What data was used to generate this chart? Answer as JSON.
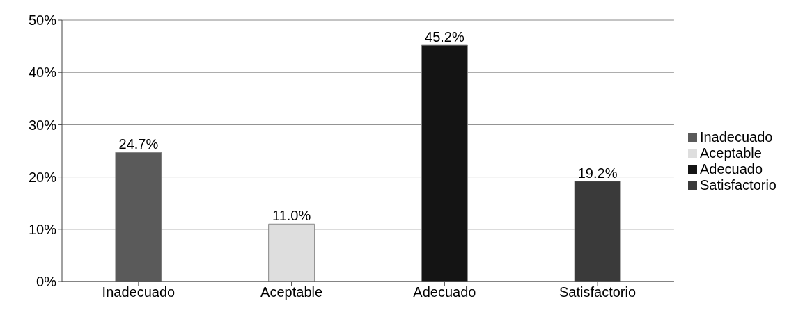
{
  "chart_data": {
    "type": "bar",
    "categories": [
      "Inadecuado",
      "Aceptable",
      "Adecuado",
      "Satisfactorio"
    ],
    "series": [
      {
        "name": "Inadecuado",
        "color": "#5a5a5a",
        "values": [
          24.7,
          null,
          null,
          null
        ],
        "value_labels": [
          "24.7%",
          null,
          null,
          null
        ]
      },
      {
        "name": "Aceptable",
        "color": "#dedede",
        "values": [
          null,
          11.0,
          null,
          null
        ],
        "value_labels": [
          null,
          "11.0%",
          null,
          null
        ]
      },
      {
        "name": "Adecuado",
        "color": "#141414",
        "values": [
          null,
          null,
          45.2,
          null
        ],
        "value_labels": [
          null,
          null,
          "45.2%",
          null
        ]
      },
      {
        "name": "Satisfactorio",
        "color": "#3a3a3a",
        "values": [
          null,
          null,
          null,
          19.2
        ],
        "value_labels": [
          null,
          null,
          null,
          "19.2%"
        ]
      }
    ],
    "stacked": true,
    "ylim": [
      0,
      50
    ],
    "yticks": [
      {
        "value": 0,
        "label": "0%"
      },
      {
        "value": 10,
        "label": "10%"
      },
      {
        "value": 20,
        "label": "20%"
      },
      {
        "value": 30,
        "label": "30%"
      },
      {
        "value": 40,
        "label": "40%"
      },
      {
        "value": 50,
        "label": "50%"
      }
    ],
    "grid": "y",
    "legend": "right"
  }
}
